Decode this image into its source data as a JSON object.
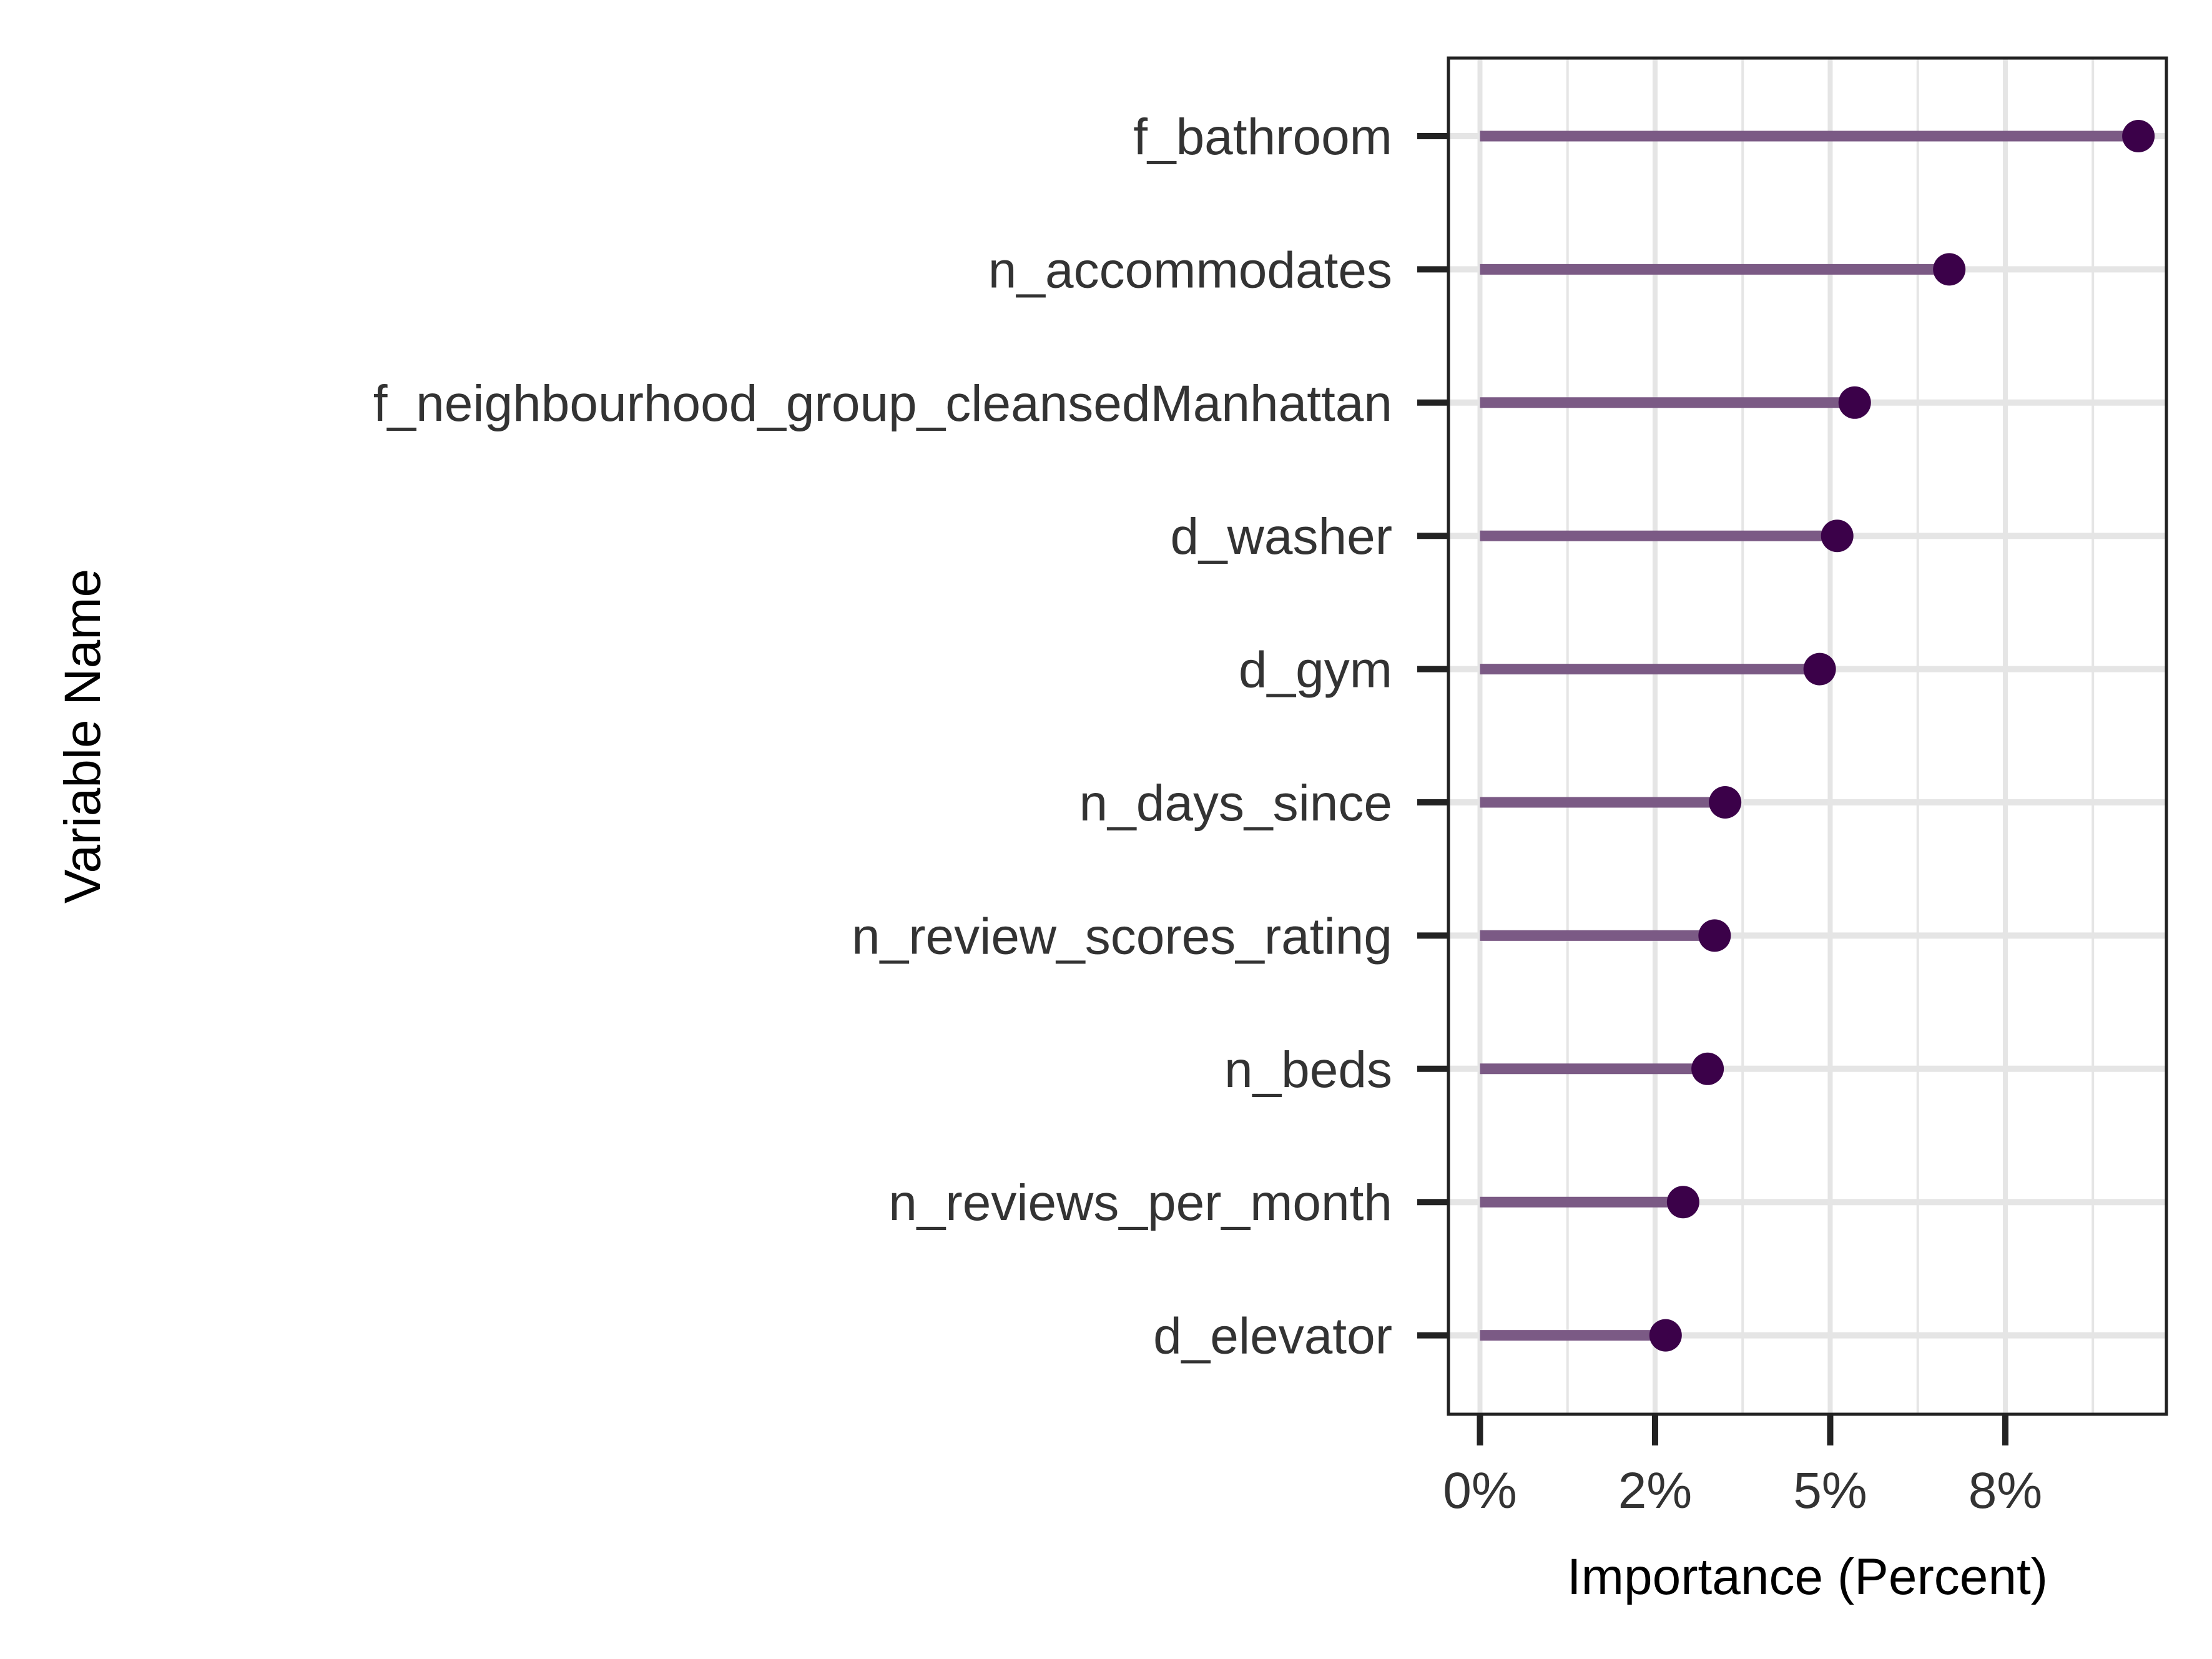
{
  "chart_data": {
    "type": "lollipop",
    "orientation": "horizontal",
    "xlabel": "Importance (Percent)",
    "ylabel": "Variable Name",
    "x_ticks": [
      {
        "value": 0,
        "label": "0%"
      },
      {
        "value": 2.5,
        "label": "2%"
      },
      {
        "value": 5,
        "label": "5%"
      },
      {
        "value": 7.5,
        "label": "8%"
      }
    ],
    "xlim": [
      -0.45,
      9.8
    ],
    "grid": true,
    "categories": [
      "f_bathroom",
      "n_accommodates",
      "f_neighbourhood_group_cleansedManhattan",
      "d_washer",
      "d_gym",
      "n_days_since",
      "n_review_scores_rating",
      "n_beds",
      "n_reviews_per_month",
      "d_elevator"
    ],
    "values": [
      9.4,
      6.7,
      5.35,
      5.1,
      4.85,
      3.5,
      3.35,
      3.25,
      2.9,
      2.65
    ],
    "colors": {
      "segment": "#7b5a85",
      "point": "#3b0149",
      "grid": "#e5e5e5",
      "axis": "#222222"
    }
  }
}
